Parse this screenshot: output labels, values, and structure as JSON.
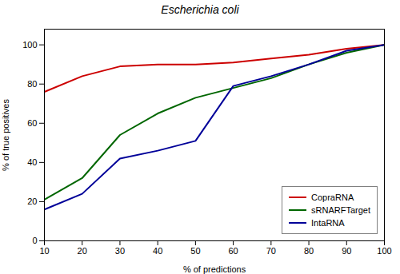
{
  "chart_data": {
    "type": "line",
    "title": "Escherichia coli",
    "xlabel": "% of predictions",
    "ylabel": "% of true positives",
    "x": [
      10,
      20,
      30,
      40,
      50,
      60,
      70,
      80,
      90,
      100
    ],
    "series": [
      {
        "name": "CopraRNA",
        "color": "#cc0000",
        "values": [
          76,
          84,
          89,
          90,
          90,
          91,
          93,
          95,
          98,
          100
        ]
      },
      {
        "name": "sRNARFTarget",
        "color": "#006600",
        "values": [
          21,
          32,
          54,
          65,
          73,
          78,
          83,
          90,
          96,
          100
        ]
      },
      {
        "name": "IntaRNA",
        "color": "#000099",
        "values": [
          16,
          24,
          42,
          46,
          51,
          79,
          84,
          90,
          97,
          100
        ]
      }
    ],
    "xlim": [
      10,
      100
    ],
    "ylim": [
      0,
      108
    ],
    "xticks": [
      10,
      20,
      30,
      40,
      50,
      60,
      70,
      80,
      90,
      100
    ],
    "yticks": [
      0,
      20,
      40,
      60,
      80,
      100
    ],
    "legend": "lower right",
    "grid": false
  }
}
